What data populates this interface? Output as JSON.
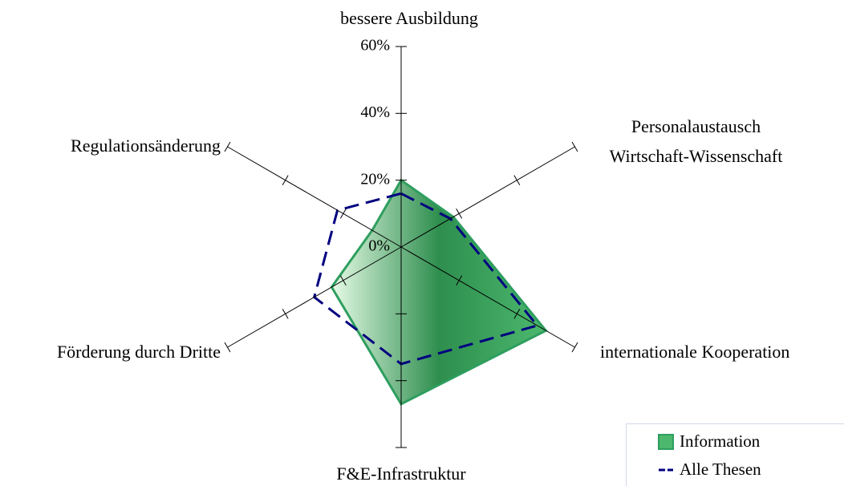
{
  "chart_data": {
    "type": "radar",
    "categories": [
      "bessere Ausbildung",
      "Personalaustausch\nWirtschaft-Wissenschaft",
      "internationale Kooperation",
      "F&E-Infrastruktur",
      "Förderung durch Dritte",
      "Regulationsänderung"
    ],
    "series": [
      {
        "name": "Information",
        "color": "#2e9e5e",
        "values": [
          20,
          18,
          50,
          47,
          24,
          10
        ]
      },
      {
        "name": "Alle Thesen",
        "color": "#000080",
        "values": [
          16,
          17,
          47,
          35,
          30,
          22
        ]
      }
    ],
    "ylim": [
      0,
      60
    ],
    "yticks": [
      {
        "value": 0,
        "label": "0%"
      },
      {
        "value": 20,
        "label": "20%"
      },
      {
        "value": 40,
        "label": "40%"
      },
      {
        "value": 60,
        "label": "60%"
      }
    ],
    "legend": "bottom-right"
  }
}
